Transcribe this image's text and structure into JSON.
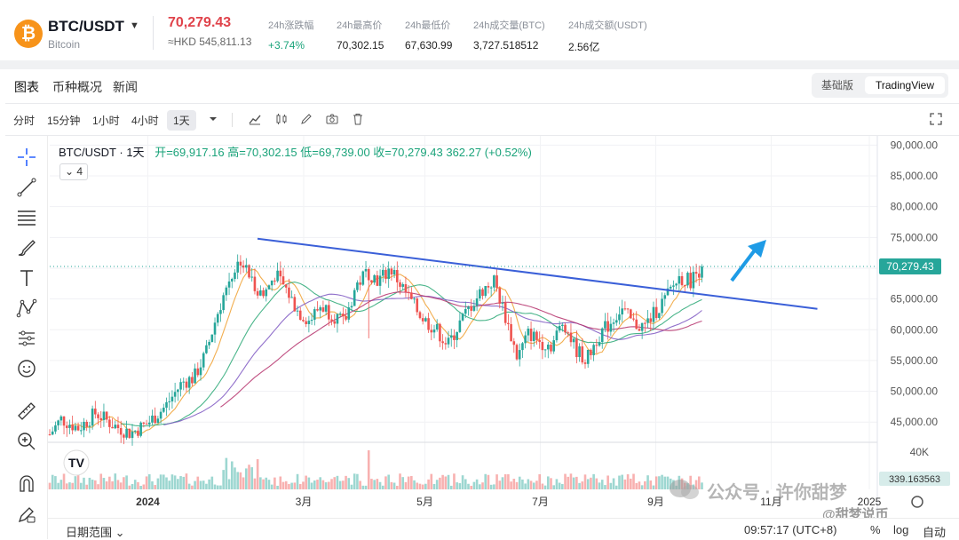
{
  "header": {
    "coin_icon": "bitcoin-icon",
    "coin_glyph": "₿",
    "pair": "BTC/USDT",
    "coin_name": "Bitcoin",
    "price": "70,279.43",
    "price_hkd": "≈HKD 545,811.13",
    "stats": [
      {
        "label": "24h涨跌幅",
        "value": "+3.74%",
        "up": true
      },
      {
        "label": "24h最高价",
        "value": "70,302.15",
        "up": false
      },
      {
        "label": "24h最低价",
        "value": "67,630.99",
        "up": false
      },
      {
        "label": "24h成交量(BTC)",
        "value": "3,727.518512",
        "up": false
      },
      {
        "label": "24h成交额(USDT)",
        "value": "2.56亿",
        "up": false
      }
    ]
  },
  "tabs": [
    "图表",
    "币种概况",
    "新闻"
  ],
  "mode_switch": {
    "basic": "基础版",
    "tradingview": "TradingView"
  },
  "toolbar": {
    "timeframes": [
      "分时",
      "15分钟",
      "1小时",
      "4小时",
      "1天"
    ],
    "active_timeframe": "1天",
    "icons": [
      "chevron-down-icon",
      "indicators-icon",
      "candle-type-icon",
      "draw-icon",
      "screenshot-icon",
      "trash-icon",
      "fullscreen-icon"
    ]
  },
  "legend": {
    "symbol": "BTC/USDT · 1天",
    "ohlc": "开=69,917.16 高=70,302.15 低=69,739.00 收=70,279.43 362.27 (+0.52%)",
    "collapse": "4"
  },
  "left_tools": [
    "crosshair-icon",
    "trend-line-icon",
    "fib-lines-icon",
    "brush-icon",
    "text-icon",
    "pattern-icon",
    "prediction-icon",
    "emoji-icon",
    "ruler-icon",
    "zoom-in-icon",
    "magnet-icon",
    "lock-pencil-icon"
  ],
  "chart_data": {
    "type": "candlestick",
    "yaxis_labels": [
      "90,000.00",
      "85,000.00",
      "80,000.00",
      "75,000.00",
      "70,000.00",
      "65,000.00",
      "60,000.00",
      "55,000.00",
      "50,000.00",
      "45,000.00"
    ],
    "ylim": [
      42000,
      91500
    ],
    "xaxis_labels": [
      "2024",
      "3月",
      "5月",
      "7月",
      "9月",
      "11月",
      "2025"
    ],
    "last_price_label": "70,279.43",
    "last_price": 70279.43,
    "volume_axis_label": "40K",
    "volume_last_label": "339.163563",
    "trendline": {
      "from": {
        "t": 0.31,
        "y": 74800
      },
      "to": {
        "t": 0.93,
        "y": 63400
      }
    },
    "arrow": "up-right",
    "price_path": [
      [
        0.0,
        43000
      ],
      [
        0.02,
        45500
      ],
      [
        0.05,
        44000
      ],
      [
        0.08,
        46500
      ],
      [
        0.11,
        44500
      ],
      [
        0.14,
        43200
      ],
      [
        0.17,
        44800
      ],
      [
        0.2,
        47500
      ],
      [
        0.23,
        51500
      ],
      [
        0.25,
        52200
      ],
      [
        0.27,
        56000
      ],
      [
        0.29,
        62500
      ],
      [
        0.31,
        68000
      ],
      [
        0.33,
        71500
      ],
      [
        0.35,
        68000
      ],
      [
        0.37,
        65500
      ],
      [
        0.39,
        69000
      ],
      [
        0.41,
        66500
      ],
      [
        0.43,
        63000
      ],
      [
        0.45,
        61500
      ],
      [
        0.47,
        64000
      ],
      [
        0.49,
        62500
      ],
      [
        0.51,
        61000
      ],
      [
        0.53,
        67000
      ],
      [
        0.55,
        69500
      ],
      [
        0.57,
        68000
      ],
      [
        0.59,
        70000
      ],
      [
        0.61,
        67000
      ],
      [
        0.63,
        64000
      ],
      [
        0.65,
        61500
      ],
      [
        0.67,
        60000
      ],
      [
        0.69,
        57500
      ],
      [
        0.71,
        61000
      ],
      [
        0.73,
        64000
      ],
      [
        0.75,
        66500
      ],
      [
        0.77,
        68000
      ],
      [
        0.79,
        62000
      ],
      [
        0.81,
        55500
      ],
      [
        0.83,
        59500
      ],
      [
        0.85,
        58000
      ],
      [
        0.87,
        57500
      ],
      [
        0.89,
        61500
      ],
      [
        0.91,
        57000
      ],
      [
        0.93,
        55000
      ],
      [
        0.95,
        59000
      ],
      [
        0.97,
        61000
      ],
      [
        0.99,
        63500
      ],
      [
        1.01,
        61000
      ],
      [
        1.03,
        60500
      ],
      [
        1.05,
        63000
      ],
      [
        1.07,
        65500
      ],
      [
        1.09,
        68500
      ],
      [
        1.11,
        68000
      ],
      [
        1.13,
        70279
      ]
    ]
  },
  "bottom_bar": {
    "range_label": "日期范围",
    "time": "09:57:17 (UTC+8)",
    "percent": "%",
    "log": "log",
    "auto": "自动"
  },
  "watermark": {
    "text": "公众号 · 许你甜梦",
    "secondary": "@甜梦说币"
  }
}
